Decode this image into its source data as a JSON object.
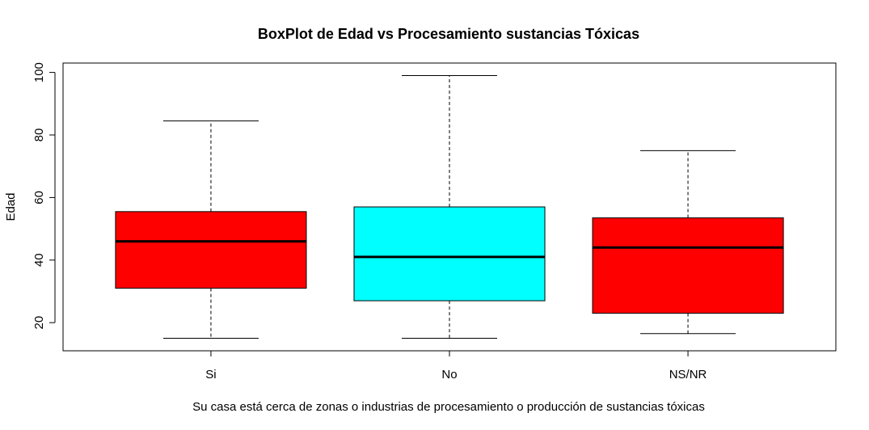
{
  "chart_data": {
    "type": "boxplot",
    "title": "BoxPlot de Edad vs Procesamiento sustancias Tóxicas",
    "xlabel": "Su casa está cerca de zonas o industrias de procesamiento o producción de sustancias tóxicas",
    "ylabel": "Edad",
    "ylim": [
      11,
      103
    ],
    "yticks": [
      20,
      40,
      60,
      80,
      100
    ],
    "grid": false,
    "categories": [
      "Si",
      "No",
      "NS/NR"
    ],
    "boxes": [
      {
        "category": "Si",
        "min": 15,
        "q1": 31,
        "median": 46,
        "q3": 55.5,
        "max": 84.5,
        "color": "#ff0000"
      },
      {
        "category": "No",
        "min": 15,
        "q1": 27,
        "median": 41,
        "q3": 57,
        "max": 99,
        "color": "#00ffff"
      },
      {
        "category": "NS/NR",
        "min": 16.5,
        "q1": 23,
        "median": 44,
        "q3": 53.5,
        "max": 75,
        "color": "#ff0000"
      }
    ]
  }
}
